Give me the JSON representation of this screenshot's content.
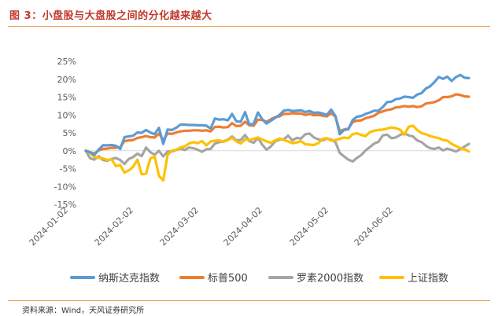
{
  "figure": {
    "title": "图 3：小盘股与大盘股之间的分化越来越大",
    "source": "资料来源：Wind，天风证券研究所"
  },
  "chart_data": {
    "type": "line",
    "y_ticks": [
      "25%",
      "20%",
      "15%",
      "10%",
      "5%",
      "0%",
      "-5%",
      "-10%",
      "-15%"
    ],
    "ylim": [
      -15,
      25
    ],
    "x_ticks": [
      "2024-01-02",
      "2024-02-02",
      "2024-03-02",
      "2024-04-02",
      "2024-05-02",
      "2024-06-02"
    ],
    "legend_position": "bottom",
    "series": [
      {
        "name": "纳斯达克指数",
        "color": "#5b9bd5",
        "values": [
          0.0,
          -0.4,
          -1.2,
          0.3,
          1.5,
          1.5,
          1.6,
          1.4,
          0.5,
          3.8,
          4.0,
          4.2,
          5.1,
          5.0,
          5.8,
          5.1,
          4.6,
          6.4,
          1.9,
          5.9,
          5.8,
          6.4,
          7.3,
          7.3,
          7.2,
          7.2,
          7.1,
          7.1,
          7.0,
          6.2,
          9.0,
          8.7,
          8.8,
          8.5,
          10.3,
          8.2,
          8.1,
          10.8,
          7.3,
          7.5,
          10.7,
          8.8,
          7.6,
          8.4,
          9.2,
          10.0,
          11.2,
          11.4,
          11.1,
          11.2,
          11.3,
          10.8,
          11.1,
          10.6,
          10.7,
          10.4,
          10.0,
          11.5,
          9.7,
          4.6,
          5.8,
          6.0,
          8.6,
          9.5,
          9.7,
          10.3,
          10.7,
          11.2,
          11.2,
          12.2,
          13.6,
          13.7,
          14.4,
          14.6,
          15.1,
          15.0,
          14.8,
          15.7,
          16.1,
          17.4,
          18.0,
          19.2,
          20.6,
          20.1,
          20.7,
          19.5,
          20.6,
          21.2,
          20.4,
          20.3
        ]
      },
      {
        "name": "标普500",
        "color": "#ed7d31",
        "values": [
          0.0,
          -0.4,
          -0.8,
          0.1,
          0.5,
          0.6,
          0.8,
          0.8,
          1.0,
          2.7,
          2.9,
          3.0,
          3.6,
          3.8,
          4.1,
          3.8,
          3.7,
          4.8,
          3.0,
          4.8,
          4.7,
          5.1,
          5.4,
          5.6,
          5.6,
          5.7,
          5.7,
          5.6,
          5.7,
          5.4,
          6.7,
          6.7,
          6.5,
          6.6,
          7.7,
          6.9,
          7.0,
          8.1,
          7.1,
          7.0,
          8.7,
          8.6,
          8.1,
          8.8,
          9.4,
          9.6,
          10.3,
          10.3,
          10.5,
          10.4,
          10.4,
          10.0,
          10.3,
          9.9,
          10.0,
          9.8,
          9.6,
          10.5,
          9.5,
          5.5,
          5.9,
          6.2,
          8.0,
          8.4,
          8.5,
          9.1,
          9.4,
          9.8,
          10.6,
          11.0,
          11.4,
          11.6,
          12.1,
          12.2,
          12.5,
          12.3,
          12.5,
          12.2,
          12.4,
          13.2,
          13.4,
          13.6,
          14.1,
          15.0,
          15.0,
          15.2,
          15.8,
          15.6,
          15.2,
          15.1
        ]
      },
      {
        "name": "罗素2000指数",
        "color": "#a5a5a5",
        "values": [
          0.0,
          -2.1,
          -2.5,
          -1.5,
          -2.6,
          -2.8,
          -2.3,
          -2.0,
          -2.6,
          -3.7,
          -2.3,
          -1.8,
          -0.8,
          -1.5,
          0.9,
          -0.4,
          -1.1,
          0.0,
          -1.6,
          -0.2,
          -0.2,
          0.2,
          0.6,
          0.2,
          0.9,
          0.7,
          0.3,
          -0.3,
          0.4,
          0.5,
          2.0,
          2.4,
          2.6,
          3.1,
          4.0,
          2.9,
          3.0,
          4.4,
          2.7,
          2.2,
          3.6,
          1.7,
          0.3,
          1.2,
          2.6,
          3.1,
          3.2,
          4.2,
          2.9,
          3.6,
          3.4,
          4.6,
          4.8,
          3.7,
          3.2,
          2.9,
          3.4,
          3.1,
          2.4,
          -0.6,
          -1.6,
          -2.5,
          -3.0,
          -2.0,
          -1.2,
          0.1,
          1.0,
          2.0,
          2.5,
          4.3,
          4.5,
          3.5,
          3.7,
          4.4,
          4.9,
          4.3,
          4.0,
          2.9,
          2.4,
          1.4,
          0.7,
          0.5,
          0.9,
          0.1,
          0.6,
          0.2,
          -0.2,
          0.4,
          1.2,
          1.9
        ]
      },
      {
        "name": "上证指数",
        "color": "#ffc000",
        "values": [
          0.0,
          -0.7,
          -1.7,
          -2.0,
          -2.1,
          -2.6,
          -2.4,
          -4.3,
          -4.0,
          -6.1,
          -5.5,
          -4.5,
          -2.5,
          -6.6,
          -6.4,
          -2.2,
          -1.6,
          -7.0,
          -8.3,
          -1.2,
          0.0,
          0.3,
          0.9,
          1.2,
          2.0,
          2.4,
          2.1,
          2.7,
          1.5,
          2.6,
          2.8,
          2.9,
          2.5,
          3.0,
          3.6,
          2.6,
          2.0,
          3.2,
          3.0,
          3.3,
          3.7,
          3.1,
          2.6,
          2.2,
          2.9,
          3.4,
          3.0,
          2.6,
          2.1,
          2.3,
          2.7,
          1.8,
          1.7,
          1.6,
          2.1,
          3.3,
          3.5,
          2.8,
          3.0,
          3.3,
          3.7,
          3.5,
          4.6,
          4.9,
          4.4,
          4.1,
          5.2,
          5.6,
          5.8,
          5.9,
          6.2,
          6.5,
          6.3,
          5.9,
          4.5,
          6.7,
          7.0,
          5.8,
          4.9,
          4.6,
          4.1,
          3.8,
          3.5,
          3.0,
          2.8,
          1.9,
          1.3,
          0.7,
          0.4,
          -0.2
        ]
      }
    ]
  }
}
